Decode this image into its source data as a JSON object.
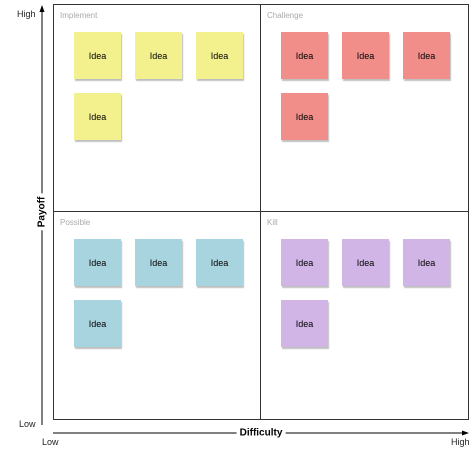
{
  "axes": {
    "y_high": "High",
    "y_low": "Low",
    "y_title": "Payoff",
    "x_low": "Low",
    "x_high": "High",
    "x_title": "Difficulty"
  },
  "quadrants": {
    "implement": {
      "label": "Implement",
      "color": "#f3f08e",
      "notes": [
        "Idea",
        "Idea",
        "Idea",
        "Idea"
      ]
    },
    "challenge": {
      "label": "Challenge",
      "color": "#f28e8a",
      "notes": [
        "Idea",
        "Idea",
        "Idea",
        "Idea"
      ]
    },
    "possible": {
      "label": "Possible",
      "color": "#a8d4e0",
      "notes": [
        "Idea",
        "Idea",
        "Idea",
        "Idea"
      ]
    },
    "kill": {
      "label": "Kill",
      "color": "#d0b5e6",
      "notes": [
        "Idea",
        "Idea",
        "Idea",
        "Idea"
      ]
    }
  }
}
